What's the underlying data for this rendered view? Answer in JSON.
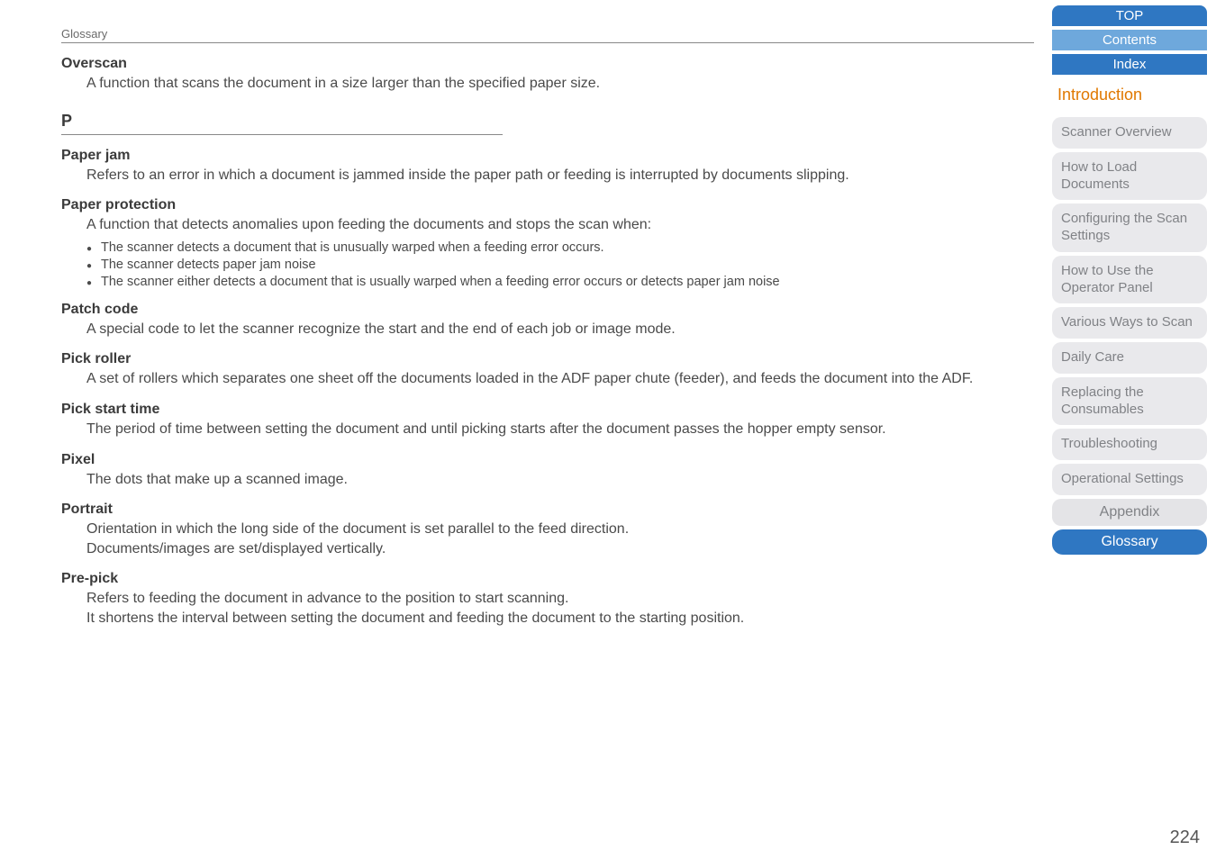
{
  "breadcrumb": "Glossary",
  "section_letter": "P",
  "terms": {
    "overscan": {
      "name": "Overscan",
      "def": "A function that scans the document in a size larger than the specified paper size."
    },
    "paper_jam": {
      "name": "Paper jam",
      "def": "Refers to an error in which a document is jammed inside the paper path or feeding is interrupted by documents slipping."
    },
    "paper_protection": {
      "name": "Paper protection",
      "def": "A function that detects anomalies upon feeding the documents and stops the scan when:",
      "bullets": [
        "The scanner detects a document that is unusually warped when a feeding error occurs.",
        "The scanner detects paper jam noise",
        "The scanner either detects a document that is usually warped when a feeding error occurs or detects paper jam noise"
      ]
    },
    "patch_code": {
      "name": "Patch code",
      "def": "A special code to let the scanner recognize the start and the end of each job or image mode."
    },
    "pick_roller": {
      "name": "Pick roller",
      "def": "A set of rollers which separates one sheet off the documents loaded in the ADF paper chute (feeder), and feeds the document into the ADF."
    },
    "pick_start_time": {
      "name": "Pick start time",
      "def": "The period of time between setting the document and until picking starts after the document passes the hopper empty sensor."
    },
    "pixel": {
      "name": "Pixel",
      "def": "The dots that make up a scanned image."
    },
    "portrait": {
      "name": "Portrait",
      "def": "Orientation in which the long side of the document is set parallel to the feed direction.\nDocuments/images are set/displayed vertically."
    },
    "pre_pick": {
      "name": "Pre-pick",
      "def": "Refers to feeding the document in advance to the position to start scanning.\nIt shortens the interval between setting the document and feeding the document to the starting position."
    }
  },
  "sidebar": {
    "top": "TOP",
    "contents": "Contents",
    "index": "Index",
    "introduction": "Introduction",
    "items": [
      "Scanner Overview",
      "How to Load Documents",
      "Configuring the Scan Settings",
      "How to Use the Operator Panel",
      "Various Ways to Scan",
      "Daily Care",
      "Replacing the Consumables",
      "Troubleshooting",
      "Operational Settings"
    ],
    "appendix": "Appendix",
    "glossary": "Glossary"
  },
  "page_number": "224",
  "colors": {
    "link_blue": "#2f77c2",
    "light_blue": "#6ea8dc",
    "orange": "#e07800",
    "grey_pill": "#e9e9ec",
    "grey_text": "#808286",
    "body_text": "#4a4a4a"
  }
}
